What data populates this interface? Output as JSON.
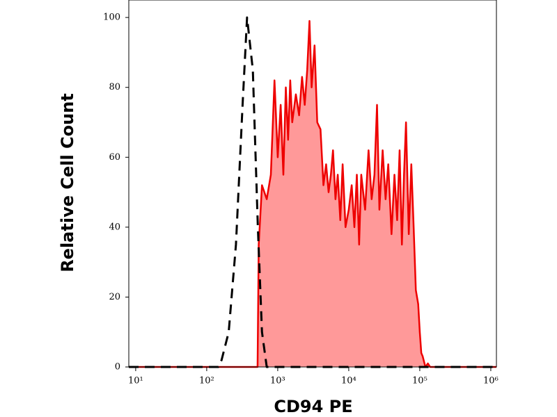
{
  "chart_data": {
    "type": "area",
    "xlabel": "CD94 PE",
    "ylabel": "Relative Cell Count",
    "xscale": "log",
    "xlim": [
      8,
      1200000
    ],
    "ylim": [
      0,
      105
    ],
    "xticks": [
      {
        "value": 10,
        "label": "10¹"
      },
      {
        "value": 100,
        "label": "10²"
      },
      {
        "value": 1000,
        "label": "10³"
      },
      {
        "value": 10000,
        "label": "10⁴"
      },
      {
        "value": 100000,
        "label": "10⁵"
      },
      {
        "value": 1000000,
        "label": "10⁶"
      }
    ],
    "yticks": [
      0,
      20,
      40,
      60,
      80,
      100
    ],
    "series": [
      {
        "color": "#ee0000",
        "fill": "#ff9999",
        "dashed": false,
        "x": [
          8,
          520,
          540,
          600,
          700,
          800,
          900,
          1000,
          1100,
          1200,
          1300,
          1400,
          1500,
          1600,
          1800,
          2000,
          2200,
          2400,
          2600,
          2800,
          3000,
          3300,
          3600,
          4000,
          4400,
          4800,
          5200,
          5600,
          6000,
          6500,
          7000,
          7600,
          8200,
          9000,
          10000,
          11000,
          12000,
          13000,
          14000,
          15000,
          17000,
          19000,
          21000,
          23000,
          25000,
          27000,
          30000,
          33000,
          36000,
          40000,
          44000,
          48000,
          52000,
          56000,
          60000,
          64000,
          70000,
          76000,
          82000,
          88000,
          95000,
          100000,
          105000,
          110000,
          120000,
          130000,
          140000,
          1200000
        ],
        "values": [
          0,
          0,
          35,
          52,
          48,
          55,
          82,
          60,
          75,
          55,
          80,
          65,
          82,
          70,
          78,
          72,
          83,
          75,
          85,
          99,
          80,
          92,
          70,
          68,
          52,
          58,
          50,
          55,
          62,
          48,
          55,
          42,
          58,
          40,
          45,
          52,
          40,
          55,
          35,
          55,
          45,
          62,
          48,
          55,
          75,
          45,
          62,
          48,
          58,
          38,
          55,
          42,
          62,
          35,
          55,
          70,
          38,
          58,
          40,
          22,
          18,
          10,
          4,
          3,
          0,
          1,
          0,
          0
        ]
      },
      {
        "color": "#000000",
        "dashed": true,
        "x": [
          8,
          146,
          162,
          204,
          258,
          320,
          370,
          446,
          525,
          600,
          700,
          1200000
        ],
        "values": [
          0,
          0,
          2,
          10,
          35,
          75,
          100,
          85,
          40,
          10,
          0,
          0
        ]
      }
    ]
  }
}
